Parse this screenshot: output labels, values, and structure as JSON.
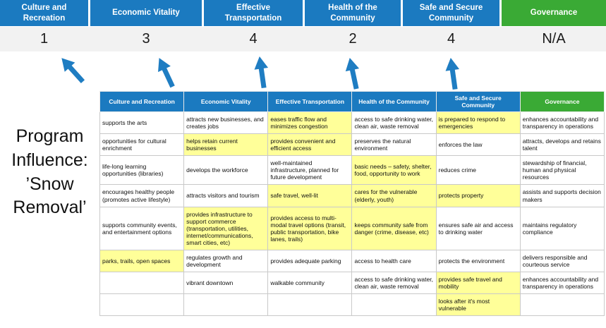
{
  "colors": {
    "blue": "#1B7AC0",
    "green": "#3AAA35",
    "highlight": "#FFFF99",
    "score_bg": "#F2F2F2",
    "arrow": "#1F7DC2"
  },
  "title": "Program Influence: ’Snow Removal’",
  "pillars": [
    {
      "label": "Culture and Recreation",
      "theme": "blue",
      "score": "1"
    },
    {
      "label": "Economic Vitality",
      "theme": "blue",
      "score": "3"
    },
    {
      "label": "Effective Transportation",
      "theme": "blue",
      "score": "4"
    },
    {
      "label": "Health of the Community",
      "theme": "blue",
      "score": "2"
    },
    {
      "label": "Safe and Secure Community",
      "theme": "blue",
      "score": "4"
    },
    {
      "label": "Governance",
      "theme": "green",
      "score": "N/A"
    }
  ],
  "matrix": {
    "rows": [
      [
        {
          "t": "supports the arts"
        },
        {
          "t": "attracts new businesses, and creates jobs"
        },
        {
          "t": "eases traffic flow and minimizes congestion",
          "h": 1
        },
        {
          "t": "access to safe drinking water, clean air, waste removal"
        },
        {
          "t": "is prepared to respond to emergencies",
          "h": 1
        },
        {
          "t": "enhances accountability and transparency in operations"
        }
      ],
      [
        {
          "t": "opportunities for cultural enrichment"
        },
        {
          "t": "helps retain current businesses",
          "h": 1
        },
        {
          "t": "provides convenient and efficient access",
          "h": 1
        },
        {
          "t": "preserves the natural environment"
        },
        {
          "t": "enforces the law"
        },
        {
          "t": "attracts, develops and retains talent"
        }
      ],
      [
        {
          "t": "life-long learning opportunities (libraries)"
        },
        {
          "t": "develops the workforce"
        },
        {
          "t": "well-maintained infrastructure, planned for future development"
        },
        {
          "t": "basic needs – safety, shelter, food, opportunity to work",
          "h": 1
        },
        {
          "t": "reduces crime"
        },
        {
          "t": "stewardship of financial, human and physical resources"
        }
      ],
      [
        {
          "t": "encourages healthy people (promotes active lifestyle)"
        },
        {
          "t": "attracts visitors and tourism"
        },
        {
          "t": "safe travel, well-lit",
          "h": 1
        },
        {
          "t": "cares for the vulnerable (elderly, youth)",
          "h": 1
        },
        {
          "t": "protects property",
          "h": 1
        },
        {
          "t": "assists and supports decision makers"
        }
      ],
      [
        {
          "t": "supports community events, and entertainment options"
        },
        {
          "t": "provides infrastructure to support commerce (transportation, utilities, internet/communications, smart cities, etc)",
          "h": 1
        },
        {
          "t": "provides access to multi-modal travel options (transit, public transportation, bike lanes, trails)",
          "h": 1
        },
        {
          "t": "keeps community safe from danger (crime, disease, etc)",
          "h": 1
        },
        {
          "t": "ensures safe air and access to drinking water"
        },
        {
          "t": "maintains regulatory compliance"
        }
      ],
      [
        {
          "t": "parks, trails, open spaces",
          "h": 1
        },
        {
          "t": "regulates growth and development"
        },
        {
          "t": "provides adequate parking"
        },
        {
          "t": "access to health care"
        },
        {
          "t": "protects the environment"
        },
        {
          "t": "delivers responsible and courteous service"
        }
      ],
      [
        {
          "t": ""
        },
        {
          "t": "vibrant downtown"
        },
        {
          "t": "walkable community"
        },
        {
          "t": "access to safe drinking water, clean air, waste removal"
        },
        {
          "t": "provides safe travel and mobility",
          "h": 1
        },
        {
          "t": "enhances accountability and transparency in operations"
        }
      ],
      [
        {
          "t": ""
        },
        {
          "t": ""
        },
        {
          "t": ""
        },
        {
          "t": ""
        },
        {
          "t": "looks after it's most vulnerable",
          "h": 1
        },
        {
          "t": ""
        }
      ]
    ]
  }
}
